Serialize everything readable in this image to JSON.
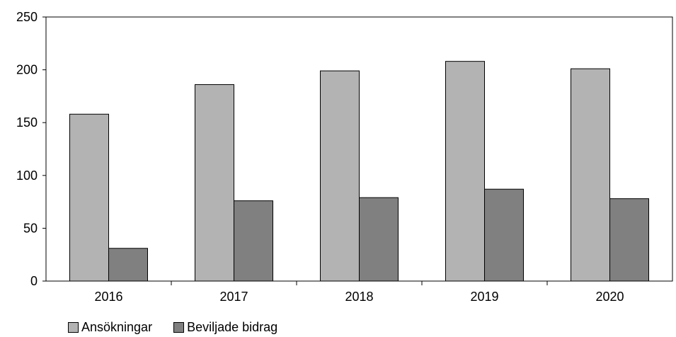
{
  "chart_data": {
    "type": "bar",
    "categories": [
      "2016",
      "2017",
      "2018",
      "2019",
      "2020"
    ],
    "series": [
      {
        "name": "Ansökningar",
        "values": [
          158,
          186,
          199,
          208,
          201
        ],
        "color": "#b3b3b3"
      },
      {
        "name": "Beviljade bidrag",
        "values": [
          31,
          76,
          79,
          87,
          78
        ],
        "color": "#808080"
      }
    ],
    "yticks": [
      "0",
      "50",
      "100",
      "150",
      "200",
      "250"
    ],
    "ylim": [
      0,
      250
    ],
    "grid": false,
    "legend_position": "bottom-left"
  }
}
